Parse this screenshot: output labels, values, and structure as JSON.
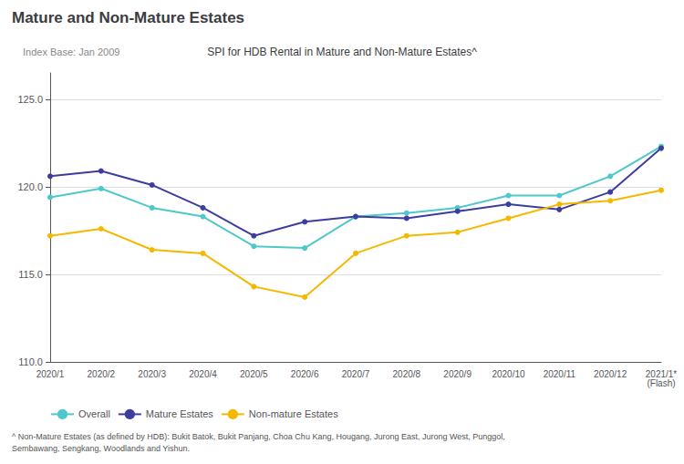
{
  "chart_data": {
    "type": "line",
    "title": "Mature and Non-Mature Estates",
    "subtitle": "SPI for HDB Rental in Mature and Non-Mature Estates^",
    "annotations": [
      "Index Base: Jan 2009"
    ],
    "footnote": "^ Non-Mature Estates (as defined by HDB): Bukit Batok, Bukit Panjang, Choa Chu Kang, Hougang, Jurong East, Jurong West, Punggol,\nSembawang, Sengkang, Woodlands and Yishun.",
    "categories": [
      "2020/1",
      "2020/2",
      "2020/3",
      "2020/4",
      "2020/5",
      "2020/6",
      "2020/7",
      "2020/8",
      "2020/9",
      "2020/10",
      "2020/11",
      "2020/12",
      "2021/1*\n(Flash)"
    ],
    "series": [
      {
        "name": "Overall",
        "color": "#4ec8c8",
        "marker": "circle",
        "values": [
          119.4,
          119.9,
          118.8,
          118.3,
          116.6,
          116.5,
          118.3,
          118.5,
          118.8,
          119.5,
          119.5,
          120.6,
          122.3
        ]
      },
      {
        "name": "Mature Estates",
        "color": "#3d3d9e",
        "marker": "circle",
        "values": [
          120.6,
          120.9,
          120.1,
          118.8,
          117.2,
          118.0,
          118.3,
          118.2,
          118.6,
          119.0,
          118.7,
          119.7,
          122.2
        ]
      },
      {
        "name": "Non-mature Estates",
        "color": "#f5b800",
        "marker": "circle",
        "values": [
          117.2,
          117.6,
          116.4,
          116.2,
          114.3,
          113.7,
          116.2,
          117.2,
          117.4,
          118.2,
          119.0,
          119.2,
          119.8
        ]
      }
    ],
    "ylim": [
      110.0,
      126.5
    ],
    "yticks": [
      {
        "value": 110.0,
        "label": "110.0"
      },
      {
        "value": 115.0,
        "label": "115.0"
      },
      {
        "value": 120.0,
        "label": "120.0"
      },
      {
        "value": 125.0,
        "label": "125.0"
      }
    ],
    "grid": true,
    "legend": "bottom left"
  }
}
